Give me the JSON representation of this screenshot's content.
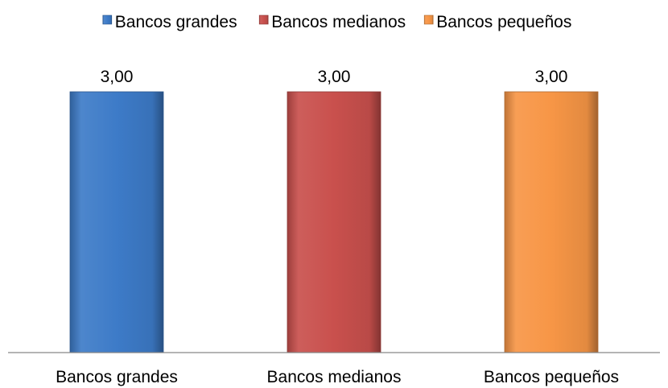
{
  "chart_data": {
    "type": "bar",
    "categories": [
      "Bancos grandes",
      "Bancos medianos",
      "Bancos pequeños"
    ],
    "series": [
      {
        "name": "Bancos grandes",
        "color": "#3d7bc8",
        "values": [
          3.0,
          null,
          null
        ],
        "labels": [
          "3,00",
          null,
          null
        ]
      },
      {
        "name": "Bancos medianos",
        "color": "#c9504d",
        "values": [
          null,
          3.0,
          null
        ],
        "labels": [
          null,
          "3,00",
          null
        ]
      },
      {
        "name": "Bancos pequeños",
        "color": "#f79646",
        "values": [
          null,
          null,
          3.0
        ],
        "labels": [
          null,
          null,
          "3,00"
        ]
      }
    ],
    "ylim": [
      0,
      3.5
    ],
    "legend": "top",
    "grid": false,
    "title": "",
    "xlabel": "",
    "ylabel": ""
  }
}
